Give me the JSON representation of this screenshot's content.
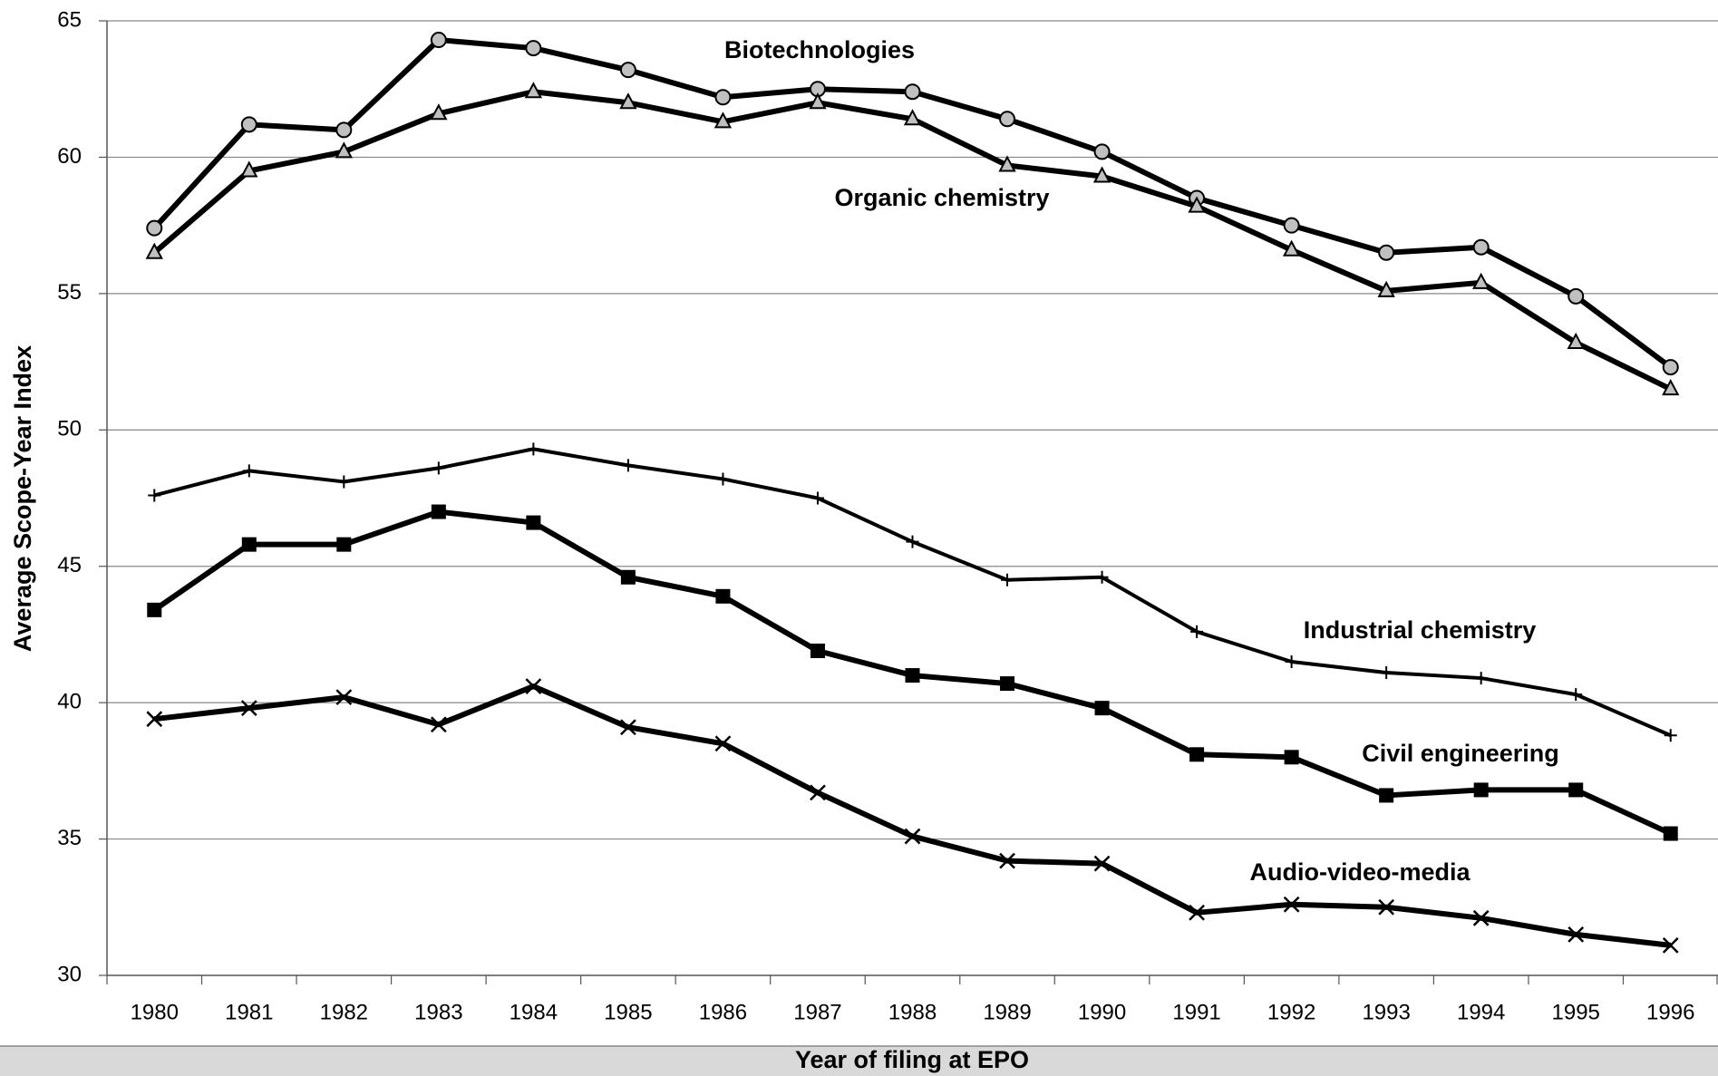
{
  "chart_data": {
    "type": "line",
    "x_label": "Year of filing at EPO",
    "y_label": "Average Scope-Year Index",
    "categories": [
      "1980",
      "1981",
      "1982",
      "1983",
      "1984",
      "1985",
      "1986",
      "1987",
      "1988",
      "1989",
      "1990",
      "1991",
      "1992",
      "1993",
      "1994",
      "1995",
      "1996"
    ],
    "ylim": [
      30,
      65
    ],
    "yticks": [
      30,
      35,
      40,
      45,
      50,
      55,
      60,
      65
    ],
    "grid": true,
    "series": [
      {
        "name": "Biotechnologies",
        "color": "#000000",
        "marker": "circle",
        "values": [
          57.4,
          61.2,
          61.0,
          64.3,
          64.0,
          63.2,
          62.2,
          62.5,
          62.4,
          61.4,
          60.2,
          58.5,
          57.5,
          56.5,
          56.7,
          54.9,
          52.3
        ]
      },
      {
        "name": "Organic chemistry",
        "color": "#000000",
        "marker": "triangle",
        "values": [
          56.5,
          59.5,
          60.2,
          61.6,
          62.4,
          62.0,
          61.3,
          62.0,
          61.4,
          59.7,
          59.3,
          58.2,
          56.6,
          55.1,
          55.4,
          53.2,
          51.5
        ]
      },
      {
        "name": "Industrial chemistry",
        "color": "#000000",
        "marker": "plus",
        "values": [
          47.6,
          48.5,
          48.1,
          48.6,
          49.3,
          48.7,
          48.2,
          47.5,
          45.9,
          44.5,
          44.6,
          42.6,
          41.5,
          41.1,
          40.9,
          40.3,
          38.8
        ]
      },
      {
        "name": "Civil engineering",
        "color": "#000000",
        "marker": "square",
        "values": [
          43.4,
          45.8,
          45.8,
          47.0,
          46.6,
          44.6,
          43.9,
          41.9,
          41.0,
          40.7,
          39.8,
          38.1,
          38.0,
          36.6,
          36.8,
          36.8,
          35.2
        ]
      },
      {
        "name": "Audio-video-media",
        "color": "#000000",
        "marker": "x",
        "values": [
          39.4,
          39.8,
          40.2,
          39.2,
          40.6,
          39.1,
          38.5,
          36.7,
          35.1,
          34.2,
          34.1,
          32.3,
          32.6,
          32.5,
          32.1,
          31.5,
          31.1
        ]
      }
    ]
  }
}
